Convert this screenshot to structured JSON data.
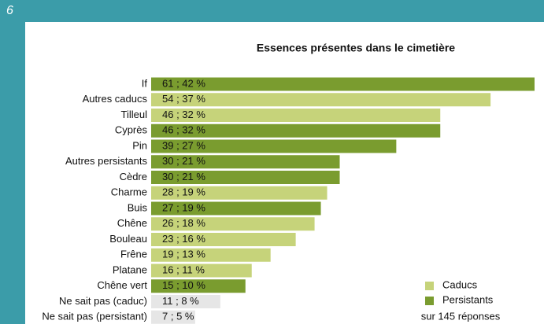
{
  "page_number": "6",
  "chart_data": {
    "type": "hbar",
    "title": "Essences présentes dans le cimetière",
    "categories": [
      "If",
      "Autres caducs",
      "Tilleul",
      "Cyprès",
      "Pin",
      "Autres persistants",
      "Cèdre",
      "Charme",
      "Buis",
      "Chêne",
      "Bouleau",
      "Frêne",
      "Platane",
      "Chêne vert",
      "Ne sait pas (caduc)",
      "Ne sait pas (persistant)"
    ],
    "values": [
      61,
      54,
      46,
      46,
      39,
      30,
      30,
      28,
      27,
      26,
      23,
      19,
      16,
      15,
      11,
      7
    ],
    "value_labels": [
      "61 ; 42 %",
      "54 ; 37 %",
      "46 ; 32 %",
      "46 ; 32 %",
      "39 ; 27 %",
      "30 ; 21 %",
      "30 ; 21 %",
      "28 ; 19 %",
      "27 ; 19 %",
      "26 ; 18 %",
      "23 ; 16 %",
      "19 ; 13 %",
      "16 ; 11 %",
      "15 ; 10 %",
      "11 ; 8 %",
      "7 ; 5 %"
    ],
    "colors": [
      "#7a9c2f",
      "#c6d37a",
      "#c6d37a",
      "#7a9c2f",
      "#7a9c2f",
      "#7a9c2f",
      "#7a9c2f",
      "#c6d37a",
      "#7a9c2f",
      "#c6d37a",
      "#c6d37a",
      "#c6d37a",
      "#c6d37a",
      "#7a9c2f",
      "#e6e6e6",
      "#e6e6e6"
    ],
    "legend": [
      {
        "name": "Caducs",
        "color": "#c6d37a"
      },
      {
        "name": "Persistants",
        "color": "#7a9c2f"
      }
    ],
    "note": "sur 145 réponses"
  }
}
